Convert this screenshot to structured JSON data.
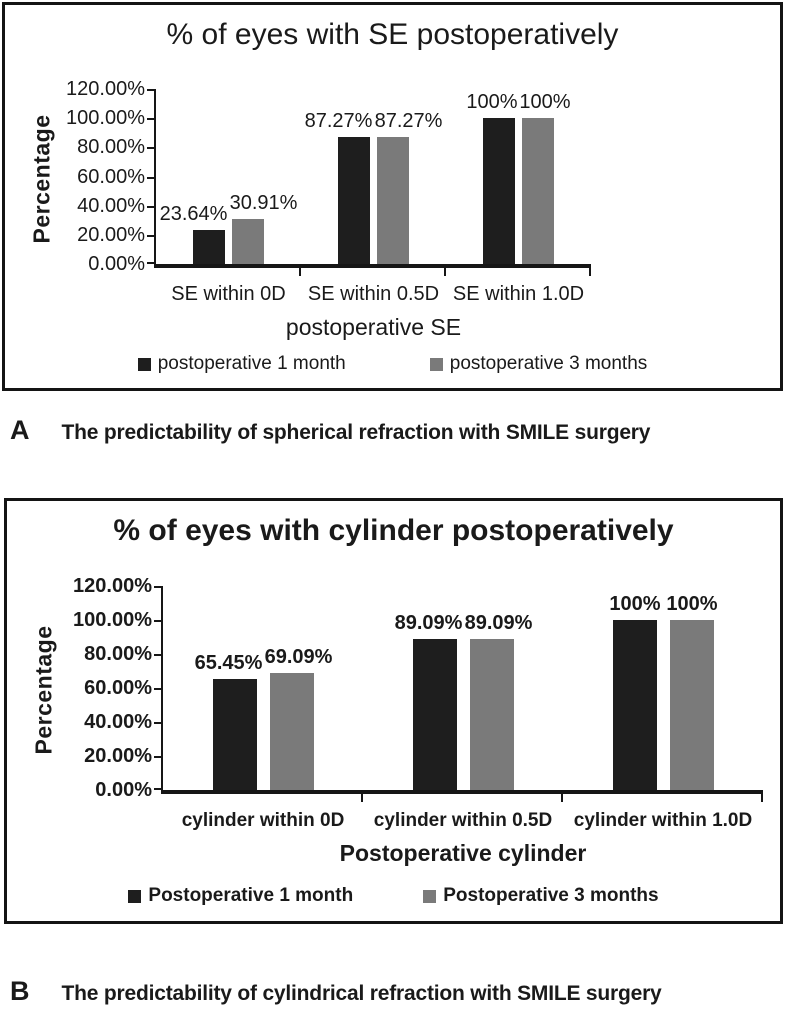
{
  "figure": {
    "background": "#ffffff",
    "border_color": "#141414",
    "axis_color": "#161616"
  },
  "chart_data": [
    {
      "type": "bar",
      "title": "% of eyes with SE postoperatively",
      "ylabel": "Percentage",
      "xlabel": "postoperative SE",
      "categories": [
        "SE within 0D",
        "SE within 0.5D",
        "SE within 1.0D"
      ],
      "series": [
        {
          "name": "postoperative 1 month",
          "color": "#1e1e1e",
          "values": [
            23.64,
            87.27,
            100
          ]
        },
        {
          "name": "postoperative 3 months",
          "color": "#7a7a7a",
          "values": [
            30.91,
            87.27,
            100
          ]
        }
      ],
      "data_labels": [
        [
          "23.64%",
          "30.91%"
        ],
        [
          "87.27%",
          "87.27%"
        ],
        [
          "100%",
          "100%"
        ]
      ],
      "yticks": [
        "120.00%",
        "100.00%",
        "80.00%",
        "60.00%",
        "40.00%",
        "20.00%",
        "0.00%"
      ],
      "ylim": [
        0,
        120
      ],
      "grid": false,
      "legend_position": "bottom"
    },
    {
      "type": "bar",
      "title": "% of eyes with cylinder postoperatively",
      "ylabel": "Percentage",
      "xlabel": "Postoperative cylinder",
      "categories": [
        "cylinder within 0D",
        "cylinder within 0.5D",
        "cylinder within 1.0D"
      ],
      "series": [
        {
          "name": "Postoperative 1 month",
          "color": "#1e1e1e",
          "values": [
            65.45,
            89.09,
            100
          ]
        },
        {
          "name": "Postoperative 3 months",
          "color": "#7a7a7a",
          "values": [
            69.09,
            89.09,
            100
          ]
        }
      ],
      "data_labels": [
        [
          "65.45%",
          "69.09%"
        ],
        [
          "89.09%",
          "89.09%"
        ],
        [
          "100%",
          "100%"
        ]
      ],
      "yticks": [
        "120.00%",
        "100.00%",
        "80.00%",
        "60.00%",
        "40.00%",
        "20.00%",
        "0.00%"
      ],
      "ylim": [
        0,
        120
      ],
      "grid": false,
      "legend_position": "bottom"
    }
  ],
  "captions": [
    {
      "letter": "A",
      "text": "The predictability of spherical refraction with SMILE surgery"
    },
    {
      "letter": "B",
      "text": "The predictability of cylindrical refraction with SMILE surgery"
    }
  ]
}
